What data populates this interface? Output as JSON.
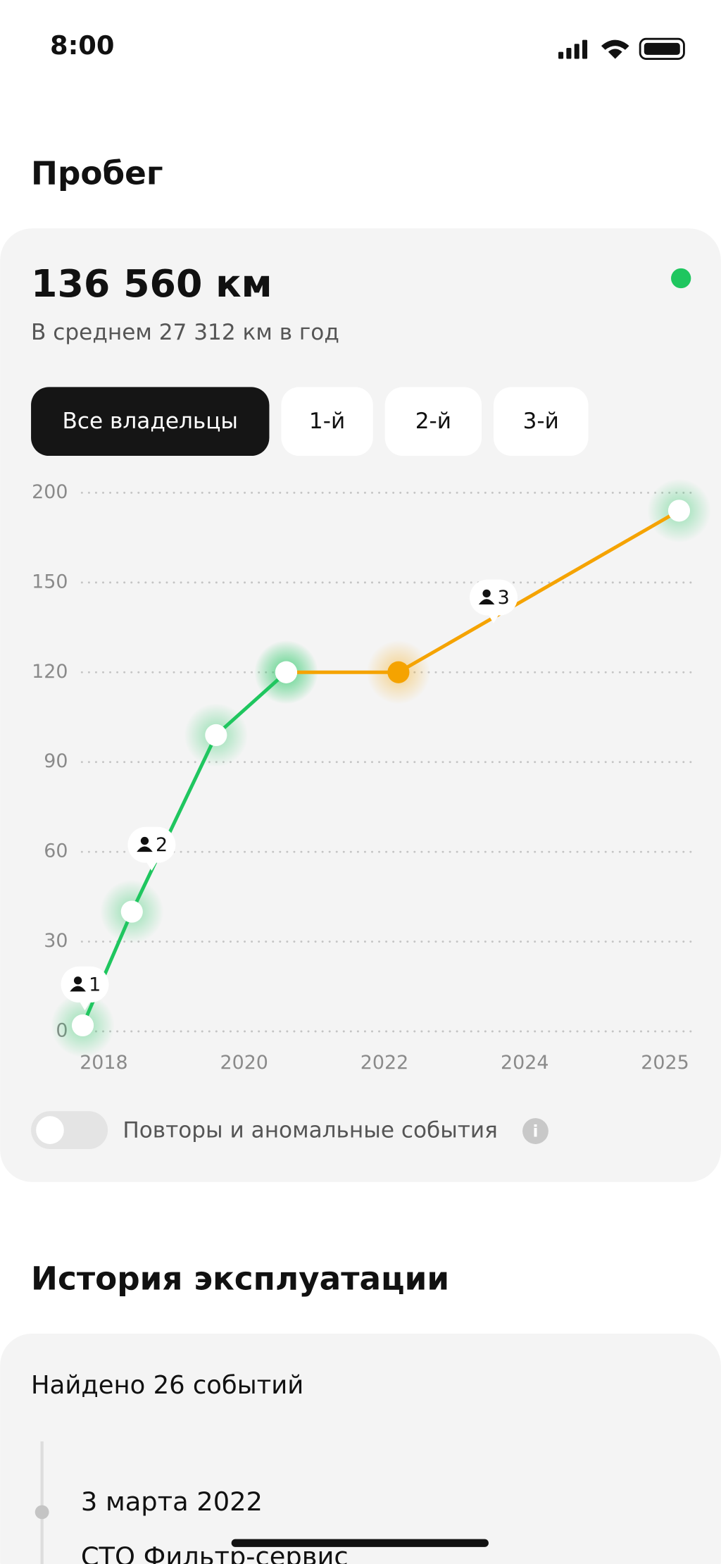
{
  "status_bar": {
    "time": "8:00"
  },
  "section_title": "Пробег",
  "summary": {
    "total": "136 560 км",
    "average": "В среднем 27 312 км в год"
  },
  "filters": [
    "Все владельцы",
    "1-й",
    "2-й",
    "3-й"
  ],
  "selected_filter": 0,
  "chart_data": {
    "type": "line",
    "xlim": [
      2017.6,
      2025.2
    ],
    "xticks": [
      2018,
      2020,
      2022,
      2024,
      2025
    ],
    "ylim": [
      0,
      200
    ],
    "yticks": [
      0,
      30,
      60,
      90,
      120,
      150,
      200
    ],
    "grid": true,
    "series": [
      {
        "color": "#1fc65f",
        "x": [
          2017.7,
          2018.4,
          2019.6,
          2020.6
        ],
        "values": [
          2,
          40,
          99,
          120
        ],
        "marker_colors": [
          "#ffffff",
          "#ffffff",
          "#ffffff",
          "#ffffff"
        ]
      },
      {
        "color": "#f5a300",
        "x": [
          2020.6,
          2022.2,
          2025.1
        ],
        "values": [
          120,
          120,
          190
        ],
        "marker_colors": [
          "#ffffff",
          "#f5a300",
          "#ffffff"
        ]
      }
    ],
    "annotations": [
      "1",
      "2",
      "3"
    ]
  },
  "toggle_label": "Повторы и аномальные события",
  "history": {
    "title": "История эксплуатации",
    "found": "Найдено 26 событий",
    "events": [
      {
        "date": "3 марта 2022",
        "place": "СТО Фильтр-сервис"
      }
    ]
  }
}
